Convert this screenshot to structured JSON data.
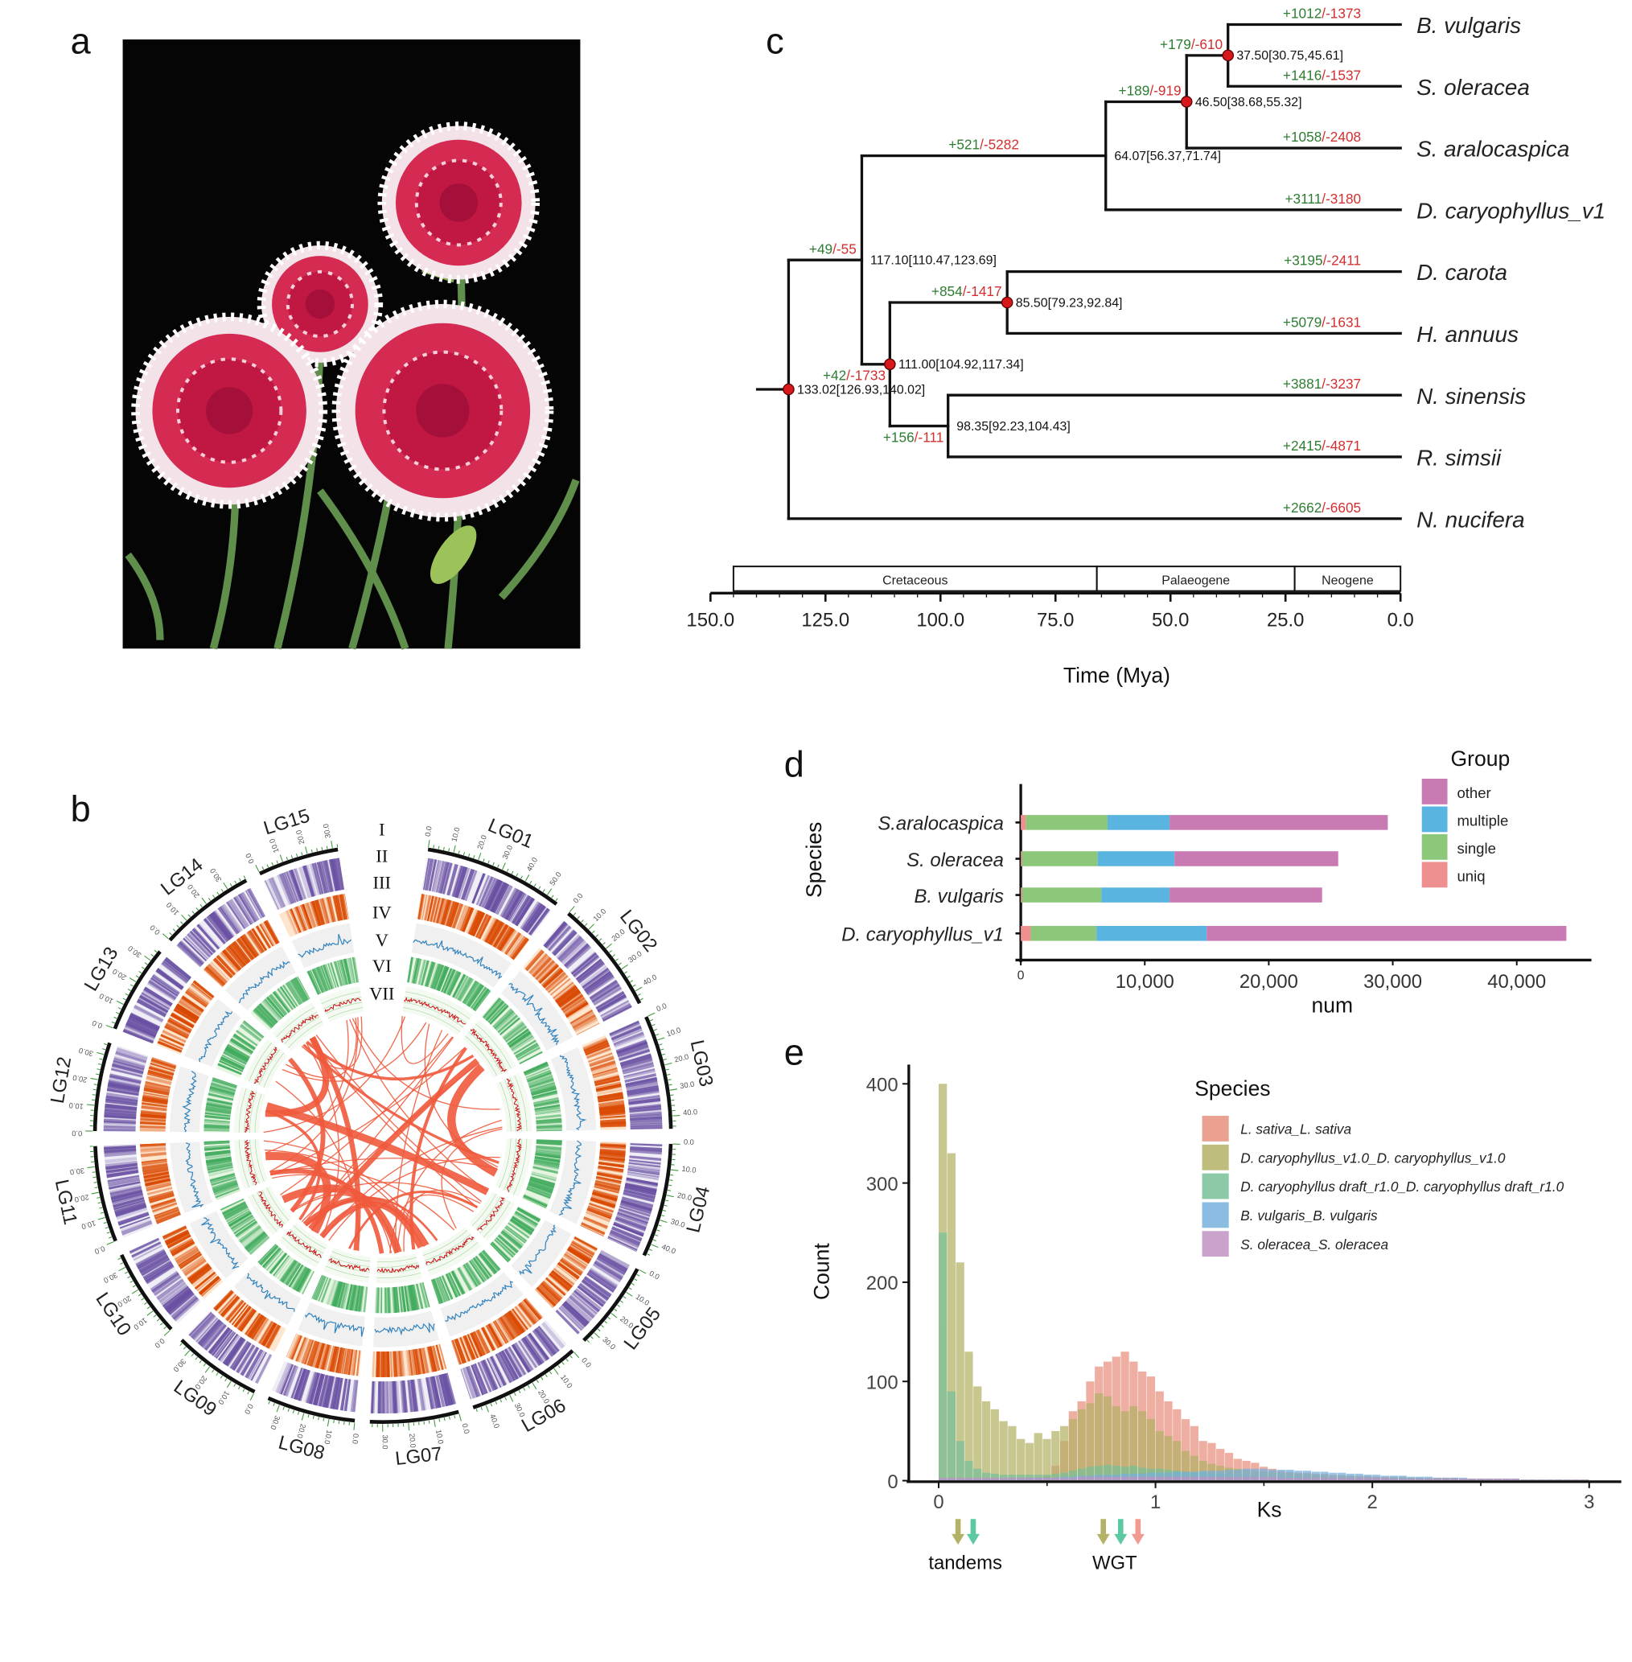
{
  "panel_labels": {
    "a": "a",
    "b": "b",
    "c": "c",
    "d": "d",
    "e": "e"
  },
  "photo": {
    "subject": "red and white carnation flowers on black background"
  },
  "chart_data": [
    {
      "panel": "b",
      "type": "circos",
      "tracks": [
        "I",
        "II",
        "III",
        "IV",
        "V",
        "VI",
        "VII"
      ],
      "chromosomes": [
        {
          "name": "LG01",
          "length": 55
        },
        {
          "name": "LG02",
          "length": 45
        },
        {
          "name": "LG03",
          "length": 45
        },
        {
          "name": "LG04",
          "length": 45
        },
        {
          "name": "LG05",
          "length": 35
        },
        {
          "name": "LG06",
          "length": 45
        },
        {
          "name": "LG07",
          "length": 35
        },
        {
          "name": "LG08",
          "length": 35
        },
        {
          "name": "LG09",
          "length": 35
        },
        {
          "name": "LG10",
          "length": 35
        },
        {
          "name": "LG11",
          "length": 38
        },
        {
          "name": "LG12",
          "length": 35
        },
        {
          "name": "LG13",
          "length": 35
        },
        {
          "name": "LG14",
          "length": 38
        },
        {
          "name": "LG15",
          "length": 32
        }
      ],
      "colors": {
        "II": "#6a51a3",
        "III": "#d94801",
        "IV": "#3182bd",
        "V": "#41ab5d",
        "VI": "#cb181d",
        "VII": "#ef5a3c"
      }
    },
    {
      "panel": "c",
      "type": "tree",
      "axis": {
        "label": "Time (Mya)",
        "ticks": [
          "150.0",
          "125.0",
          "100.0",
          "75.0",
          "50.0",
          "25.0",
          "0.0"
        ],
        "range": [
          150,
          0
        ]
      },
      "periods": [
        {
          "name": "Cretaceous",
          "from": 145,
          "to": 66
        },
        {
          "name": "Palaeogene",
          "from": 66,
          "to": 23
        },
        {
          "name": "Neogene",
          "from": 23,
          "to": 0
        }
      ],
      "colors": {
        "gain": "#2e7d32",
        "loss": "#d32f2f",
        "highlight": "#3a3f9b",
        "node_marker": "#d7191c"
      },
      "tree": {
        "id": "root",
        "age": 133.02,
        "label": "133.02[126.93,140.02]",
        "marked": true,
        "children": [
          {
            "id": "n117",
            "age": 117.1,
            "label": "117.10[110.47,123.69]",
            "gain": "+49",
            "loss": "-55",
            "children": [
              {
                "id": "n64",
                "age": 64.07,
                "label": "64.07[56.37,71.74]",
                "gain": "+521",
                "loss": "-5282",
                "children": [
                  {
                    "id": "n46",
                    "age": 46.5,
                    "label": "46.50[38.68,55.32]",
                    "marked": true,
                    "gain": "+189",
                    "loss": "-919",
                    "children": [
                      {
                        "id": "n37",
                        "age": 37.5,
                        "label": "37.50[30.75,45.61]",
                        "marked": true,
                        "gain": "+179",
                        "loss": "-610",
                        "children": [
                          {
                            "name": "B. vulgaris",
                            "gain": "+1012",
                            "loss": "-1373"
                          },
                          {
                            "name": "S. oleracea",
                            "gain": "+1416",
                            "loss": "-1537"
                          }
                        ]
                      },
                      {
                        "name": "S. aralocaspica",
                        "gain": "+1058",
                        "loss": "-2408"
                      }
                    ]
                  },
                  {
                    "name": "D. caryophyllus_v1",
                    "gain": "+3111",
                    "loss": "-3180",
                    "highlight": true
                  }
                ]
              },
              {
                "id": "n111",
                "age": 111.0,
                "label": "111.00[104.92,117.34]",
                "marked": true,
                "gain": "+42",
                "loss": "-1733",
                "children": [
                  {
                    "id": "n85",
                    "age": 85.5,
                    "label": "85.50[79.23,92.84]",
                    "marked": true,
                    "gain": "+854",
                    "loss": "-1417",
                    "children": [
                      {
                        "name": "D. carota",
                        "gain": "+3195",
                        "loss": "-2411"
                      },
                      {
                        "name": "H. annuus",
                        "gain": "+5079",
                        "loss": "-1631"
                      }
                    ]
                  },
                  {
                    "id": "n98",
                    "age": 98.35,
                    "label": "98.35[92.23,104.43]",
                    "gain": "+156",
                    "loss": "-111",
                    "children": [
                      {
                        "name": "N. sinensis",
                        "gain": "+3881",
                        "loss": "-3237"
                      },
                      {
                        "name": "R. simsii",
                        "gain": "+2415",
                        "loss": "-4871"
                      }
                    ]
                  }
                ]
              }
            ]
          },
          {
            "name": "N. nucifera",
            "gain": "+2662",
            "loss": "-6605"
          }
        ]
      }
    },
    {
      "panel": "d",
      "type": "bar",
      "orientation": "horizontal",
      "stacked": true,
      "xlabel": "num",
      "ylabel": "Species",
      "xlim": [
        0,
        46000
      ],
      "xticks": [
        "0",
        "10,000",
        "20,000",
        "30,000",
        "40,000"
      ],
      "categories": [
        "S.aralocaspica",
        "S. oleracea",
        "B. vulgaris",
        "D. caryophyllus_v1"
      ],
      "legend": {
        "title": "Group",
        "order": [
          "other",
          "multiple",
          "single",
          "uniq"
        ],
        "placement": "top-right"
      },
      "series": [
        {
          "name": "uniq",
          "color": "#ef9090",
          "values": [
            400,
            100,
            100,
            800
          ]
        },
        {
          "name": "single",
          "color": "#8dc87a",
          "values": [
            6600,
            6100,
            6400,
            5300
          ]
        },
        {
          "name": "multiple",
          "color": "#5ab4e0",
          "values": [
            5000,
            6200,
            5500,
            8900
          ]
        },
        {
          "name": "other",
          "color": "#c97ab2",
          "values": [
            17600,
            13200,
            12300,
            29000
          ]
        }
      ]
    },
    {
      "panel": "e",
      "type": "histogram",
      "xlabel": "Ks",
      "ylabel": "Count",
      "xlim": [
        0,
        3
      ],
      "ylim": [
        0,
        400
      ],
      "xticks": [
        "0",
        "1",
        "2",
        "3"
      ],
      "yticks": [
        "0",
        "100",
        "200",
        "300",
        "400"
      ],
      "bin_width": 0.04,
      "legend": {
        "title": "Species",
        "placement": "top-right"
      },
      "series": [
        {
          "name": "L. sativa_L. sativa",
          "color": "#e8907f",
          "values": [
            1,
            1,
            1,
            1,
            1,
            2,
            2,
            2,
            2,
            3,
            3,
            3,
            5,
            15,
            40,
            70,
            80,
            100,
            115,
            120,
            125,
            130,
            120,
            110,
            105,
            90,
            80,
            72,
            62,
            55,
            40,
            38,
            32,
            28,
            22,
            20,
            18,
            14,
            12,
            10,
            9,
            8,
            8,
            7,
            7,
            6,
            6,
            5,
            5,
            5,
            4,
            4,
            4,
            4,
            3,
            3,
            3,
            3,
            3,
            3,
            2,
            2,
            2,
            2,
            2,
            2,
            2,
            1,
            1,
            1,
            1,
            1,
            1,
            1,
            1
          ]
        },
        {
          "name": "D. caryophyllus_v1.0_D. caryophyllus_v1.0",
          "color": "#b4b266",
          "values": [
            400,
            330,
            220,
            130,
            95,
            80,
            72,
            60,
            55,
            42,
            38,
            48,
            42,
            50,
            55,
            62,
            72,
            78,
            88,
            85,
            75,
            70,
            75,
            70,
            62,
            50,
            45,
            40,
            30,
            25,
            20,
            17,
            15,
            13,
            12,
            11,
            10,
            9,
            9,
            8,
            8,
            7,
            7,
            6,
            6,
            5,
            5,
            5,
            4,
            4,
            4,
            3,
            3,
            3,
            3,
            3,
            2,
            2,
            2,
            2,
            2,
            2,
            2,
            2,
            1,
            1,
            1,
            1,
            1,
            1,
            1,
            1,
            1,
            1,
            1
          ]
        },
        {
          "name": "D. caryophyllus draft_r1.0_D. caryophyllus draft_r1.0",
          "color": "#78c097",
          "values": [
            250,
            90,
            40,
            20,
            12,
            8,
            7,
            6,
            6,
            6,
            6,
            6,
            6,
            7,
            8,
            10,
            12,
            14,
            15,
            16,
            15,
            14,
            15,
            13,
            12,
            12,
            11,
            10,
            9,
            8,
            8,
            7,
            7,
            6,
            6,
            5,
            5,
            5,
            4,
            4,
            4,
            4,
            3,
            3,
            3,
            3,
            3,
            3,
            2,
            2,
            2,
            2,
            2,
            2,
            2,
            2,
            1,
            1,
            1,
            1,
            1,
            1,
            1,
            1,
            1,
            1,
            1,
            1,
            1,
            1,
            1,
            1,
            0,
            0,
            0
          ]
        },
        {
          "name": "B. vulgaris_B. vulgaris",
          "color": "#75b1dc",
          "values": [
            2,
            2,
            2,
            2,
            2,
            2,
            2,
            2,
            2,
            2,
            3,
            3,
            3,
            3,
            4,
            4,
            5,
            5,
            6,
            6,
            6,
            7,
            7,
            7,
            8,
            8,
            8,
            9,
            9,
            9,
            10,
            10,
            10,
            11,
            11,
            12,
            12,
            12,
            11,
            11,
            11,
            10,
            10,
            9,
            9,
            8,
            8,
            7,
            7,
            6,
            6,
            5,
            5,
            5,
            4,
            4,
            4,
            3,
            3,
            3,
            3,
            2,
            2,
            2,
            2,
            2,
            2,
            1,
            1,
            1,
            1,
            1,
            1,
            1,
            1
          ]
        },
        {
          "name": "S. oleracea_S. oleracea",
          "color": "#c193c3",
          "values": [
            3,
            3,
            3,
            3,
            3,
            3,
            3,
            3,
            3,
            3,
            3,
            3,
            3,
            3,
            3,
            3,
            4,
            4,
            4,
            4,
            4,
            4,
            4,
            4,
            4,
            4,
            4,
            4,
            4,
            4,
            4,
            4,
            4,
            4,
            4,
            4,
            4,
            4,
            4,
            3,
            3,
            3,
            3,
            3,
            3,
            3,
            3,
            3,
            3,
            3,
            3,
            3,
            2,
            2,
            2,
            2,
            2,
            2,
            2,
            2,
            2,
            2,
            2,
            2,
            2,
            2,
            2,
            1,
            1,
            1,
            1,
            1,
            1,
            1,
            1
          ]
        }
      ],
      "annotations": [
        {
          "label": "tandems",
          "arrows": [
            {
              "ks": 0.05,
              "color": "#b4b266"
            },
            {
              "ks": 0.12,
              "color": "#5cc9a0"
            }
          ]
        },
        {
          "label": "WGT",
          "arrows": [
            {
              "ks": 0.72,
              "color": "#b4b266"
            },
            {
              "ks": 0.8,
              "color": "#5cc9a0"
            },
            {
              "ks": 0.88,
              "color": "#f09a90"
            }
          ]
        }
      ]
    }
  ]
}
